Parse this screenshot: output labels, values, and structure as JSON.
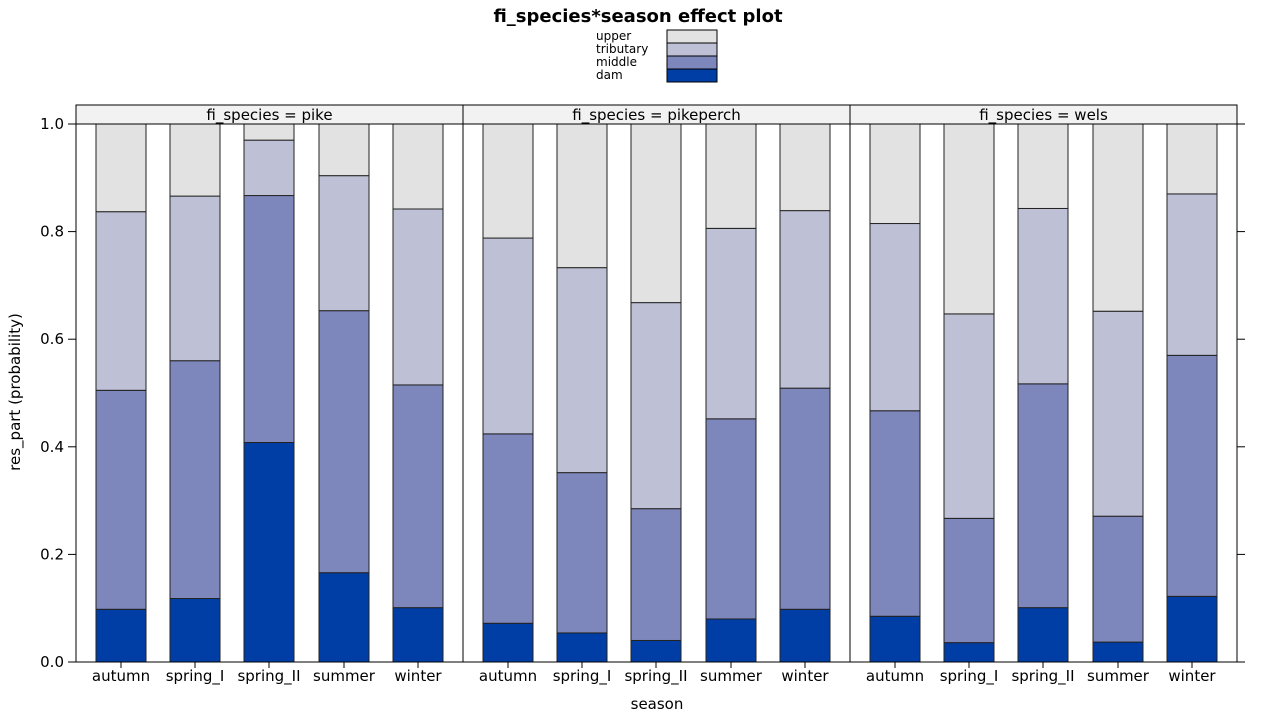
{
  "chart_data": {
    "type": "bar",
    "stacked": true,
    "title": "fi_species*season effect plot",
    "xlabel": "season",
    "ylabel": "res_part (probability)",
    "ylim": [
      0,
      1
    ],
    "yticks": [
      "0.0",
      "0.2",
      "0.4",
      "0.6",
      "0.8",
      "1.0"
    ],
    "ytick_values": [
      0,
      0.2,
      0.4,
      0.6,
      0.8,
      1.0
    ],
    "categories": [
      "autumn",
      "spring_I",
      "spring_II",
      "summer",
      "winter"
    ],
    "legend": {
      "position": "top",
      "entries": [
        "upper",
        "tributary",
        "middle",
        "dam"
      ]
    },
    "colors": {
      "dam": "#003ea6",
      "middle": "#7e87bc",
      "tributary": "#bec1d6",
      "upper": "#e2e2e2"
    },
    "panels": [
      {
        "label": "fi_species = pike",
        "series": [
          {
            "name": "dam",
            "values": [
              0.098,
              0.118,
              0.408,
              0.166,
              0.101
            ]
          },
          {
            "name": "middle",
            "values": [
              0.407,
              0.442,
              0.459,
              0.487,
              0.414
            ]
          },
          {
            "name": "tributary",
            "values": [
              0.332,
              0.306,
              0.103,
              0.251,
              0.327
            ]
          },
          {
            "name": "upper",
            "values": [
              0.163,
              0.134,
              0.03,
              0.096,
              0.158
            ]
          }
        ]
      },
      {
        "label": "fi_species = pikeperch",
        "series": [
          {
            "name": "dam",
            "values": [
              0.072,
              0.054,
              0.04,
              0.08,
              0.098
            ]
          },
          {
            "name": "middle",
            "values": [
              0.352,
              0.298,
              0.245,
              0.372,
              0.411
            ]
          },
          {
            "name": "tributary",
            "values": [
              0.364,
              0.381,
              0.383,
              0.354,
              0.33
            ]
          },
          {
            "name": "upper",
            "values": [
              0.212,
              0.267,
              0.332,
              0.194,
              0.161
            ]
          }
        ]
      },
      {
        "label": "fi_species = wels",
        "series": [
          {
            "name": "dam",
            "values": [
              0.085,
              0.036,
              0.101,
              0.037,
              0.122
            ]
          },
          {
            "name": "middle",
            "values": [
              0.382,
              0.231,
              0.416,
              0.234,
              0.448
            ]
          },
          {
            "name": "tributary",
            "values": [
              0.348,
              0.38,
              0.326,
              0.381,
              0.3
            ]
          },
          {
            "name": "upper",
            "values": [
              0.185,
              0.353,
              0.157,
              0.348,
              0.13
            ]
          }
        ]
      }
    ]
  }
}
